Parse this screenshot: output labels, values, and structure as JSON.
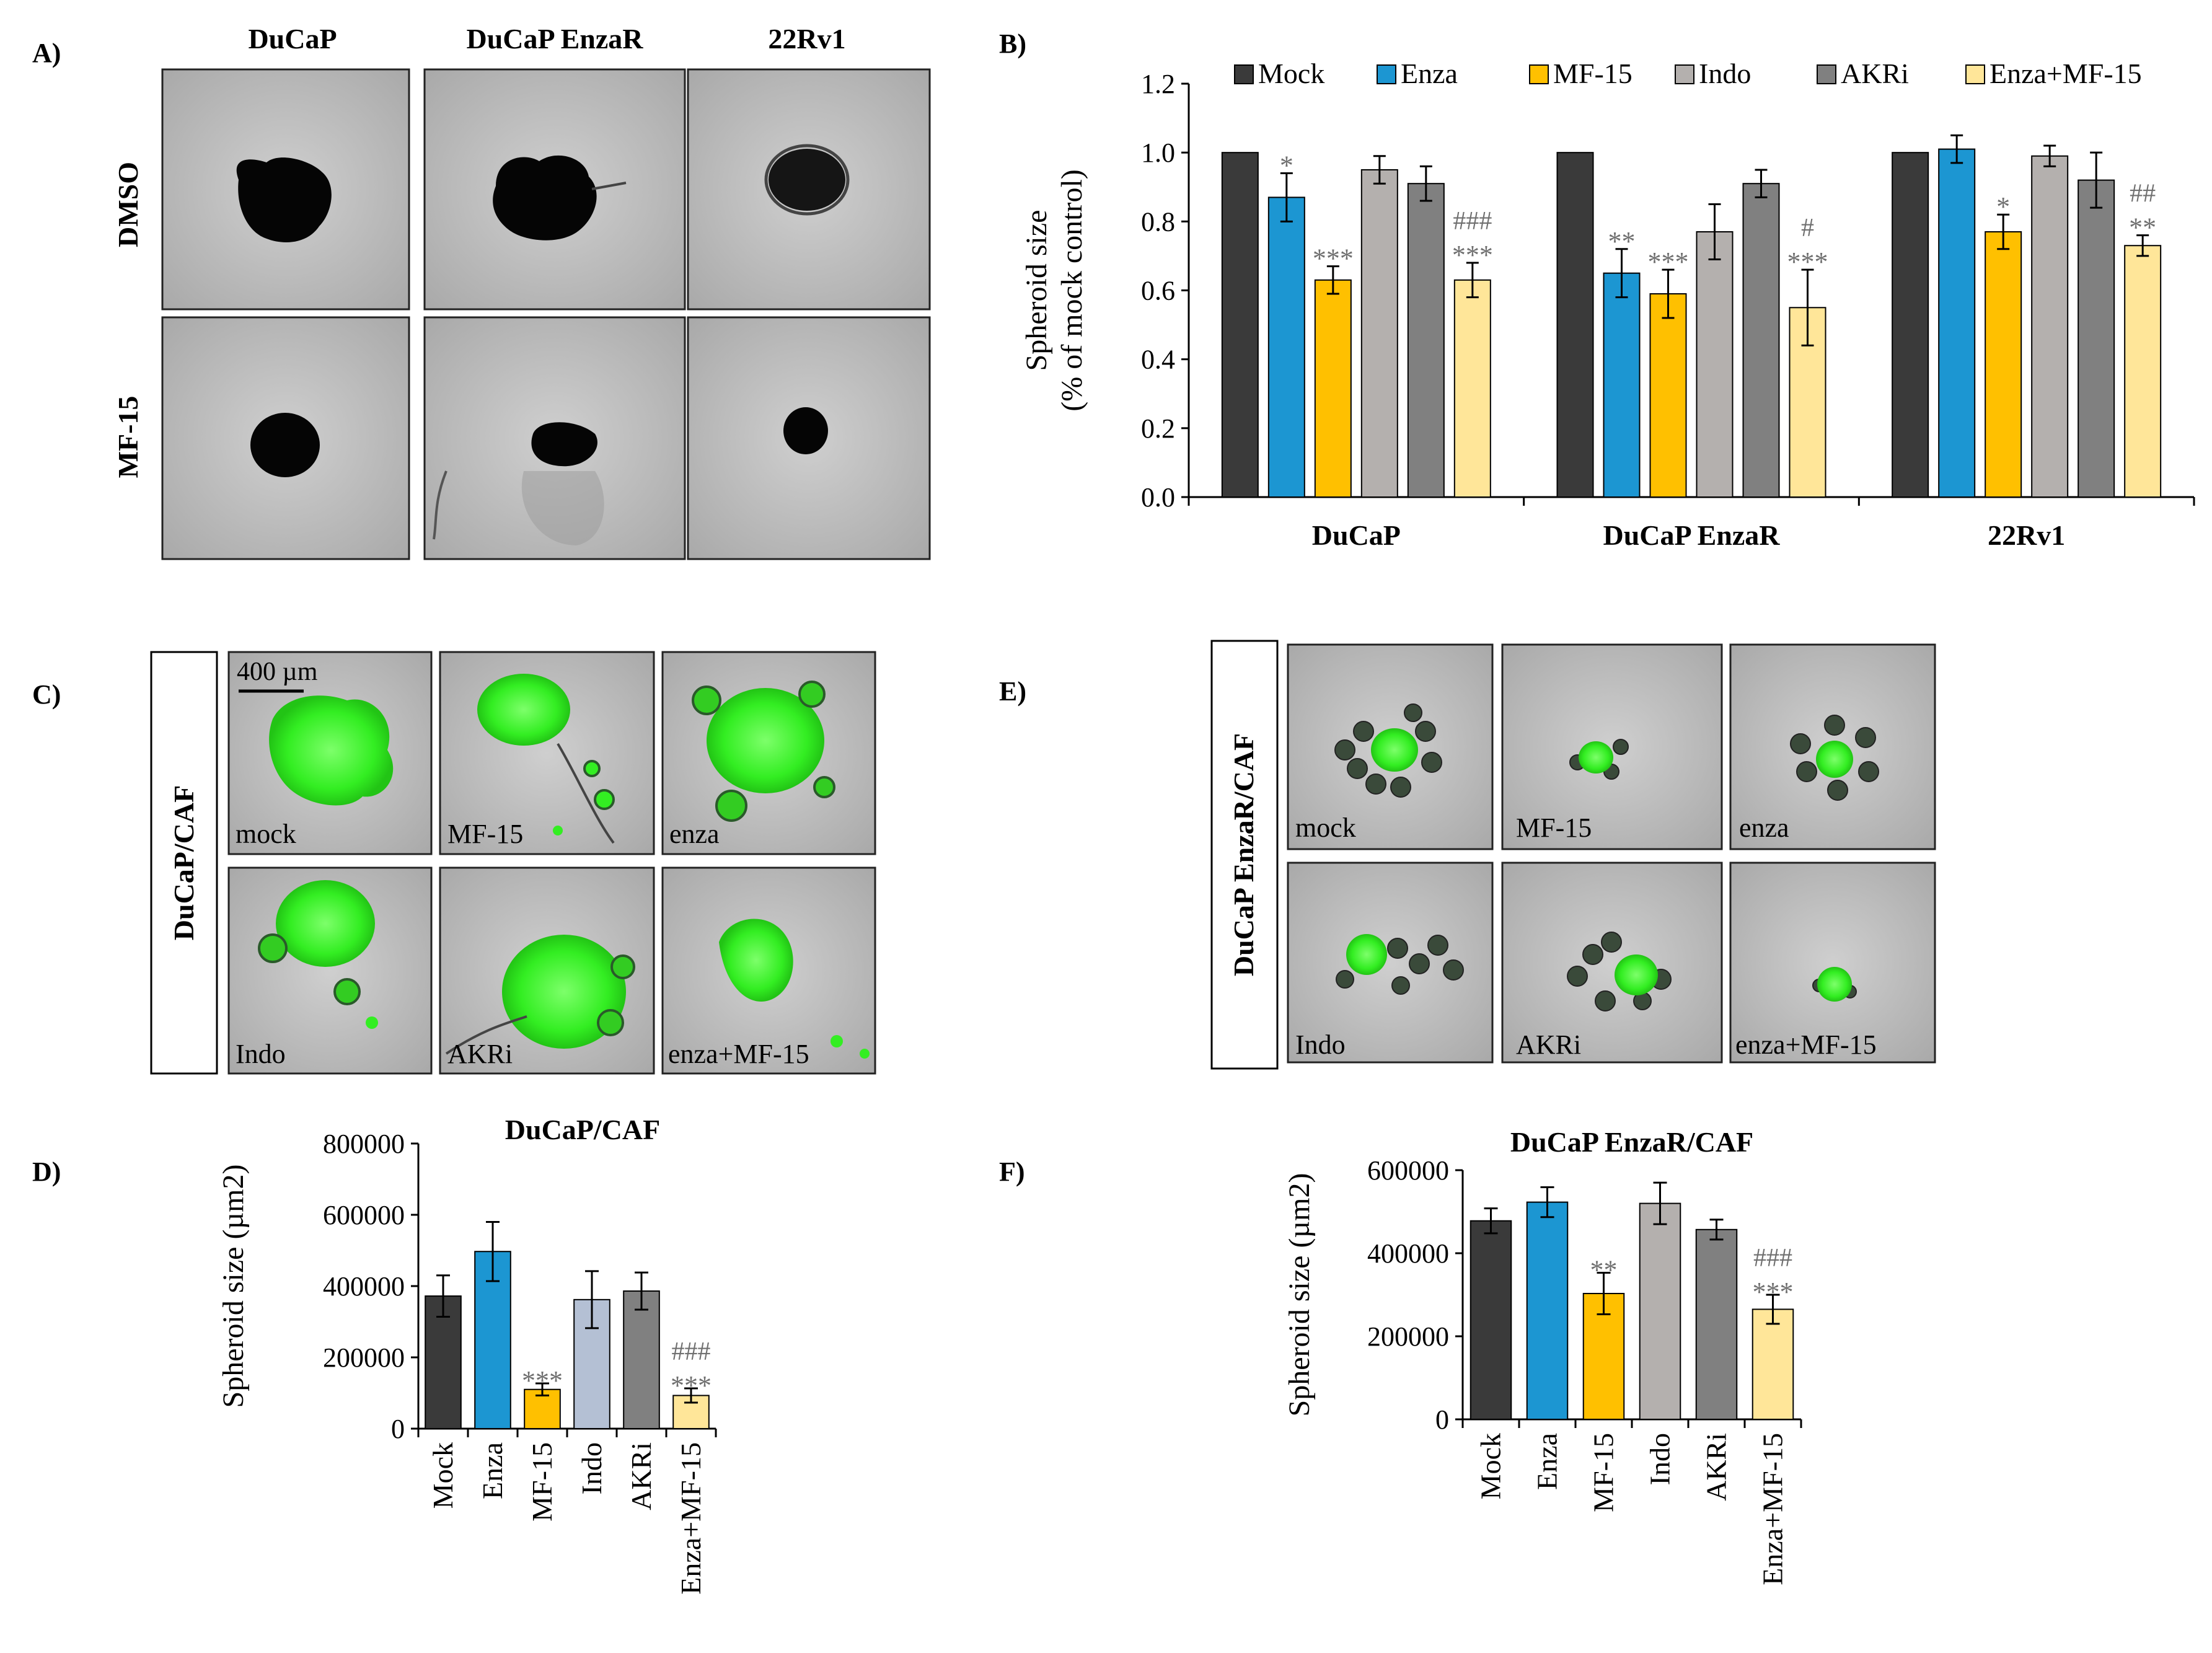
{
  "panel_labels": {
    "A": "A)",
    "B": "B)",
    "C": "C)",
    "D": "D)",
    "E": "E)",
    "F": "F)"
  },
  "colors": {
    "mock": "#3a3a3a",
    "enza": "#1c96d2",
    "mf15": "#ffc000",
    "indo": "#b4b0ae",
    "akri": "#808080",
    "combo": "#ffe699",
    "indo_d": "#b4c0d4",
    "sig": "#6f6f6f",
    "green": "#33ee22",
    "photo_bg": "#bdbdbd"
  },
  "panel_a": {
    "columns": [
      "DuCaP",
      "DuCaP EnzaR",
      "22Rv1"
    ],
    "rows": [
      "DMSO",
      "MF-15"
    ]
  },
  "panel_c": {
    "side_label": "DuCaP/CAF",
    "scale_bar": "400 µm",
    "captions": [
      "mock",
      "MF-15",
      "enza",
      "Indo",
      "AKRi",
      "enza+MF-15"
    ]
  },
  "panel_e": {
    "side_label": "DuCaP EnzaR/CAF",
    "captions": [
      "mock",
      "MF-15",
      "enza",
      "Indo",
      "AKRi",
      "enza+MF-15"
    ]
  },
  "chart_data": [
    {
      "id": "B",
      "type": "bar",
      "title": "",
      "ylabel": "Spheroid size",
      "ylabel2": "(% of mock control)",
      "ylim": [
        0,
        1.2
      ],
      "yticks": [
        "0.0",
        "0.2",
        "0.4",
        "0.6",
        "0.8",
        "1.0",
        "1.2"
      ],
      "legend": [
        "Mock",
        "Enza",
        "MF-15",
        "Indo",
        "AKRi",
        "Enza+MF-15"
      ],
      "categories": [
        "DuCaP",
        "DuCaP EnzaR",
        "22Rv1"
      ],
      "series": [
        {
          "name": "Mock",
          "color": "mock",
          "values": [
            1.0,
            1.0,
            1.0
          ],
          "err": [
            0,
            0,
            0
          ],
          "sig": [
            [
              "",
              ""
            ],
            [
              "",
              ""
            ],
            [
              "",
              ""
            ]
          ]
        },
        {
          "name": "Enza",
          "color": "enza",
          "values": [
            0.87,
            0.65,
            1.01
          ],
          "err": [
            0.07,
            0.07,
            0.04
          ],
          "sig": [
            [
              "",
              "*"
            ],
            [
              "",
              "**"
            ],
            [
              "",
              ""
            ]
          ]
        },
        {
          "name": "MF-15",
          "color": "mf15",
          "values": [
            0.63,
            0.59,
            0.77
          ],
          "err": [
            0.04,
            0.07,
            0.05
          ],
          "sig": [
            [
              "",
              "***"
            ],
            [
              "",
              "***"
            ],
            [
              "",
              "*"
            ]
          ]
        },
        {
          "name": "Indo",
          "color": "indo",
          "values": [
            0.95,
            0.77,
            0.99
          ],
          "err": [
            0.04,
            0.08,
            0.03
          ],
          "sig": [
            [
              "",
              ""
            ],
            [
              "",
              ""
            ],
            [
              "",
              ""
            ]
          ]
        },
        {
          "name": "AKRi",
          "color": "akri",
          "values": [
            0.91,
            0.91,
            0.92
          ],
          "err": [
            0.05,
            0.04,
            0.08
          ],
          "sig": [
            [
              "",
              ""
            ],
            [
              "",
              ""
            ],
            [
              "",
              ""
            ]
          ]
        },
        {
          "name": "Enza+MF-15",
          "color": "combo",
          "values": [
            0.63,
            0.55,
            0.73
          ],
          "err": [
            0.05,
            0.11,
            0.03
          ],
          "sig": [
            [
              "###",
              "***"
            ],
            [
              "#",
              "***"
            ],
            [
              "##",
              "**"
            ]
          ]
        }
      ]
    },
    {
      "id": "D",
      "type": "bar",
      "title": "DuCaP/CAF",
      "ylabel": "Spheroid size (µm2)",
      "ylim": [
        0,
        800000
      ],
      "yticks": [
        "0",
        "200000",
        "400000",
        "600000",
        "800000"
      ],
      "categories": [
        "Mock",
        "Enza",
        "MF-15",
        "Indo",
        "AKRi",
        "Enza+MF-15"
      ],
      "colors": [
        "mock",
        "enza",
        "mf15",
        "indo_d",
        "akri",
        "combo"
      ],
      "values": [
        372000,
        497000,
        110000,
        362000,
        386000,
        93000
      ],
      "err": [
        58000,
        83000,
        17000,
        80000,
        52000,
        20000
      ],
      "sig": [
        [
          "",
          ""
        ],
        [
          "",
          ""
        ],
        [
          "",
          "***"
        ],
        [
          "",
          ""
        ],
        [
          "",
          ""
        ],
        [
          "###",
          "***"
        ]
      ]
    },
    {
      "id": "F",
      "type": "bar",
      "title": "DuCaP EnzaR/CAF",
      "ylabel": "Spheroid size (µm2)",
      "ylim": [
        0,
        600000
      ],
      "yticks": [
        "0",
        "200000",
        "400000",
        "600000"
      ],
      "categories": [
        "Mock",
        "Enza",
        "MF-15",
        "Indo",
        "AKRi",
        "Enza+MF-15"
      ],
      "colors": [
        "mock",
        "enza",
        "mf15",
        "indo",
        "akri",
        "combo"
      ],
      "values": [
        478000,
        523000,
        303000,
        520000,
        457000,
        265000
      ],
      "err": [
        30000,
        36000,
        50000,
        50000,
        24000,
        35000
      ],
      "sig": [
        [
          "",
          ""
        ],
        [
          "",
          ""
        ],
        [
          "",
          "**"
        ],
        [
          "",
          ""
        ],
        [
          "",
          ""
        ],
        [
          "###",
          "***"
        ]
      ]
    }
  ]
}
